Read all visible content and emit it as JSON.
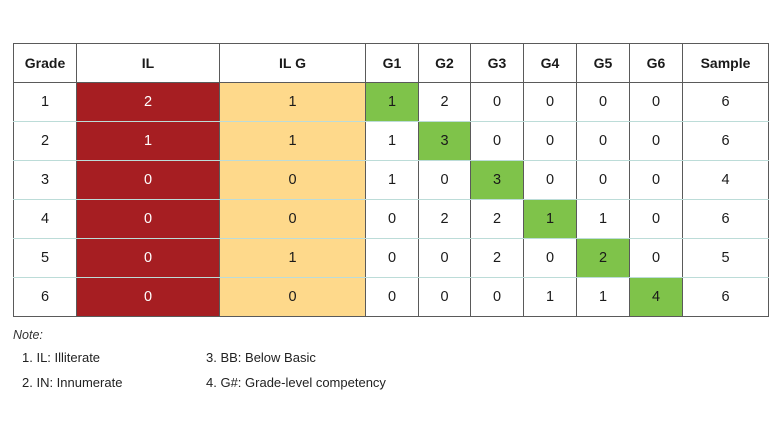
{
  "columns": [
    "Grade",
    "IL",
    "IL G",
    "G1",
    "G2",
    "G3",
    "G4",
    "G5",
    "G6",
    "Sample"
  ],
  "rows": [
    [
      "1",
      "2",
      "1",
      "1",
      "2",
      "0",
      "0",
      "0",
      "0",
      "6"
    ],
    [
      "2",
      "1",
      "1",
      "1",
      "3",
      "0",
      "0",
      "0",
      "0",
      "6"
    ],
    [
      "3",
      "0",
      "0",
      "1",
      "0",
      "3",
      "0",
      "0",
      "0",
      "4"
    ],
    [
      "4",
      "0",
      "0",
      "0",
      "2",
      "2",
      "1",
      "1",
      "0",
      "6"
    ],
    [
      "5",
      "0",
      "1",
      "0",
      "0",
      "2",
      "0",
      "2",
      "0",
      "5"
    ],
    [
      "6",
      "0",
      "0",
      "0",
      "0",
      "0",
      "1",
      "1",
      "4",
      "6"
    ]
  ],
  "colors": {
    "il_fill": "#a61e22",
    "ilg_fill": "#fed98b",
    "diagonal_highlight": "#7fc34a"
  },
  "note": {
    "label": "Note:",
    "items": [
      "1. IL: Illiterate",
      "2. IN: Innumerate",
      "3. BB: Below Basic",
      "4. G#: Grade-level competency"
    ]
  }
}
